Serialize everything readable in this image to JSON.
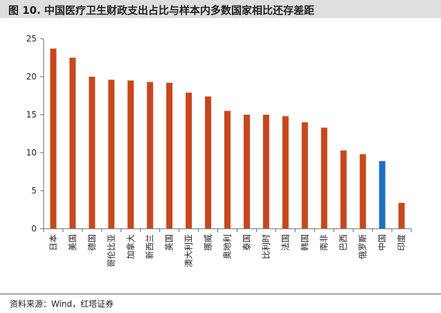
{
  "header": {
    "title": "图 10. 中国医疗卫生财政支出占比与样本内多数国家相比还存差距"
  },
  "footer": {
    "source": "资料来源：Wind，红塔证券"
  },
  "colors": {
    "bar": "#c8471d",
    "highlight": "#1f6fc0",
    "title_bg": "#dedede"
  },
  "chart_data": {
    "type": "bar",
    "title": "",
    "xlabel": "",
    "ylabel": "",
    "ylim": [
      0,
      25
    ],
    "yticks": [
      0,
      5,
      10,
      15,
      20,
      25
    ],
    "grid": false,
    "categories": [
      "日本",
      "美国",
      "德国",
      "哥伦比亚",
      "加拿大",
      "新西兰",
      "英国",
      "澳大利亚",
      "挪威",
      "奥地利",
      "泰国",
      "比利时",
      "法国",
      "韩国",
      "南非",
      "巴西",
      "俄罗斯",
      "中国",
      "印度"
    ],
    "values": [
      23.7,
      22.5,
      20.0,
      19.6,
      19.5,
      19.3,
      19.2,
      17.9,
      17.4,
      15.5,
      15.0,
      15.0,
      14.8,
      14.0,
      13.3,
      10.3,
      9.8,
      8.9,
      3.4
    ],
    "highlight_category": "中国"
  }
}
